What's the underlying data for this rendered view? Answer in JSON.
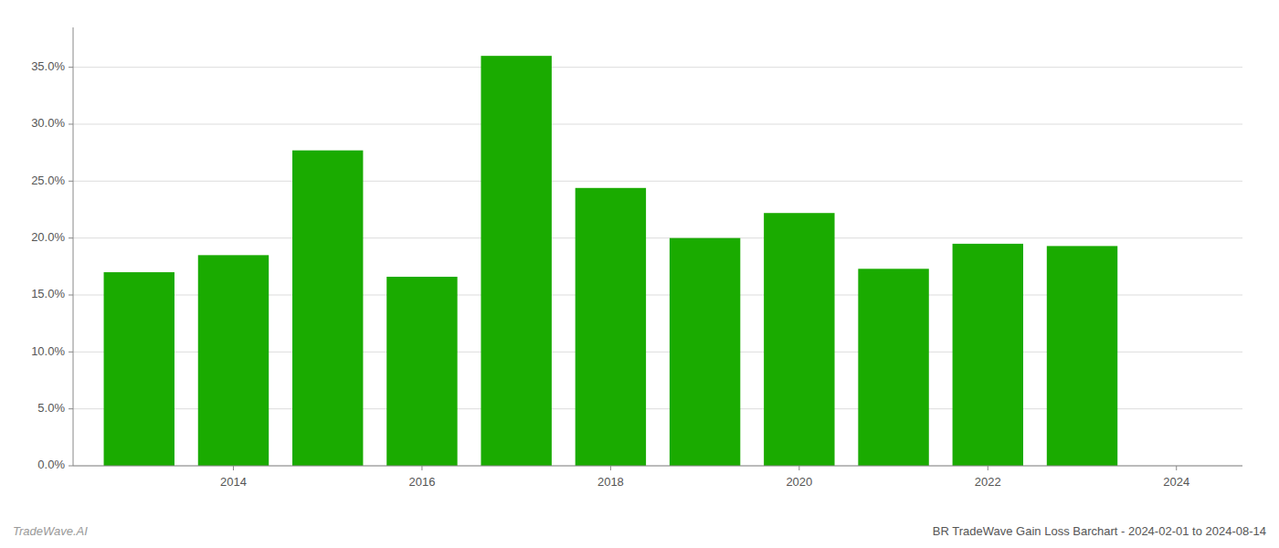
{
  "chart_data": {
    "type": "bar",
    "title": "BR TradeWave Gain Loss Barchart - 2024-02-01 to 2024-08-14",
    "annotations": [
      "TradeWave.AI"
    ],
    "x": [
      2013,
      2014,
      2015,
      2016,
      2017,
      2018,
      2019,
      2020,
      2021,
      2022,
      2023
    ],
    "values": [
      0.17,
      0.185,
      0.277,
      0.166,
      0.36,
      0.244,
      0.2,
      0.222,
      0.173,
      0.195,
      0.193
    ],
    "color": "#1aab00",
    "xlim": [
      2012.3,
      2024.7
    ],
    "xticks": [
      2014,
      2016,
      2018,
      2020,
      2022,
      2024
    ],
    "ylim": [
      0,
      0.385
    ],
    "yticks": [
      {
        "value": 0.0,
        "label": "0.0%"
      },
      {
        "value": 0.05,
        "label": "5.0%"
      },
      {
        "value": 0.1,
        "label": "10.0%"
      },
      {
        "value": 0.15,
        "label": "15.0%"
      },
      {
        "value": 0.2,
        "label": "20.0%"
      },
      {
        "value": 0.25,
        "label": "25.0%"
      },
      {
        "value": 0.3,
        "label": "30.0%"
      },
      {
        "value": 0.35,
        "label": "35.0%"
      }
    ],
    "grid": true
  }
}
